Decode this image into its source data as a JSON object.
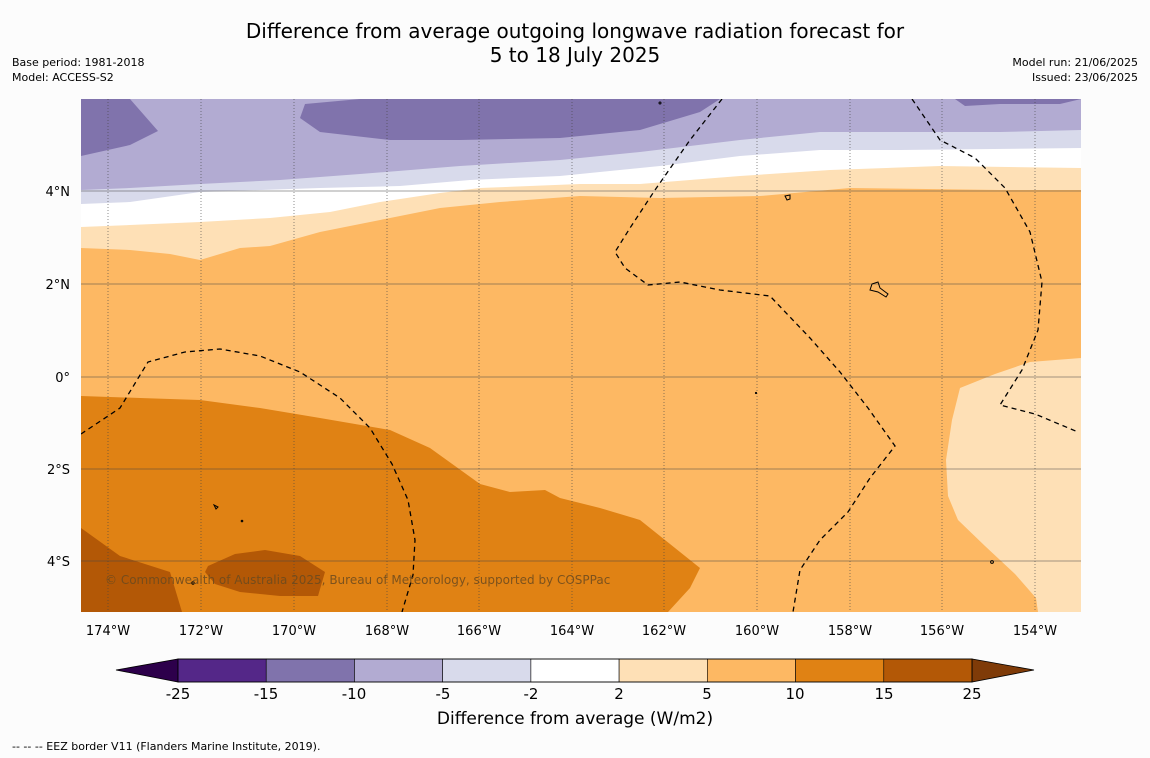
{
  "title_line1": "Difference from average outgoing longwave radiation forecast for",
  "title_line2": "5 to 18 July 2025",
  "base_period": "Base period: 1981-2018",
  "model": "Model: ACCESS-S2",
  "model_run": "Model run: 21/06/2025",
  "issued": "Issued: 23/06/2025",
  "copyright": "© Commonwealth of Australia 2025, Bureau of Meteorology, supported by COSPPac",
  "footnote": "--  --  -- EEZ border V11 (Flanders Marine Institute, 2019).",
  "lat_labels": [
    {
      "label": "4°N",
      "lat": 4
    },
    {
      "label": "2°N",
      "lat": 2
    },
    {
      "label": "0°",
      "lat": 0
    },
    {
      "label": "2°S",
      "lat": -2
    },
    {
      "label": "4°S",
      "lat": -4
    }
  ],
  "lon_labels": [
    {
      "label": "174°W",
      "lon": -174
    },
    {
      "label": "172°W",
      "lon": -172
    },
    {
      "label": "170°W",
      "lon": -170
    },
    {
      "label": "168°W",
      "lon": -168
    },
    {
      "label": "166°W",
      "lon": -166
    },
    {
      "label": "164°W",
      "lon": -164
    },
    {
      "label": "162°W",
      "lon": -162
    },
    {
      "label": "160°W",
      "lon": -160
    },
    {
      "label": "158°W",
      "lon": -158
    },
    {
      "label": "156°W",
      "lon": -156
    },
    {
      "label": "154°W",
      "lon": -154
    }
  ],
  "colorbar": {
    "title": "Difference from average (W/m2)",
    "ticks": [
      "-25",
      "-15",
      "-10",
      "-5",
      "-2",
      "2",
      "5",
      "10",
      "15",
      "25"
    ],
    "colors": [
      "#542788",
      "#8073ac",
      "#b2abd2",
      "#d8daeb",
      "#ffffff",
      "#fee0b6",
      "#fdb863",
      "#e08214",
      "#b35806"
    ],
    "under_color": "#2d004b",
    "over_color": "#7f3b08"
  },
  "colors": {
    "purple_dark": "#8073ac",
    "purple_mid": "#b2abd2",
    "purple_light": "#d8daeb",
    "orange_light": "#fee0b6",
    "orange_mid": "#fdb863",
    "orange_dark": "#e08214",
    "brown": "#b35806"
  }
}
